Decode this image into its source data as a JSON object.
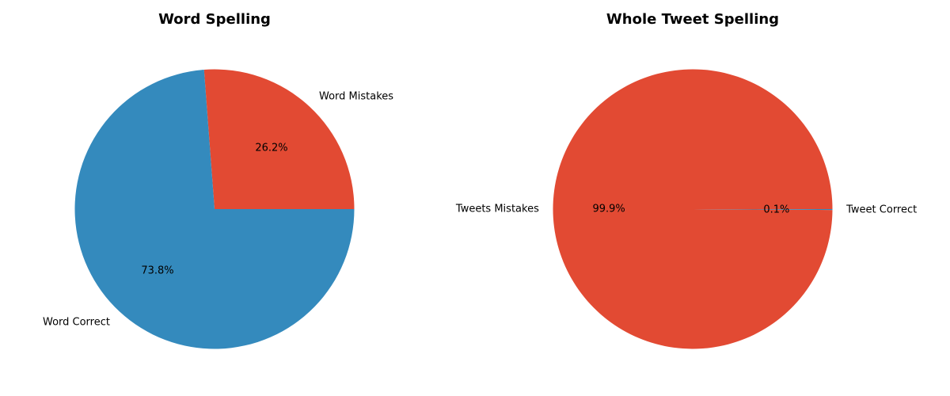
{
  "colors": {
    "red": "#E24A33",
    "blue": "#348ABD"
  },
  "chart_data": [
    {
      "type": "pie",
      "title": "Word Spelling",
      "slices": [
        {
          "label": "Word Mistakes",
          "value": 26.2,
          "pct_label": "26.2%",
          "color": "#E24A33"
        },
        {
          "label": "Word Correct",
          "value": 73.8,
          "pct_label": "73.8%",
          "color": "#348ABD"
        }
      ]
    },
    {
      "type": "pie",
      "title": "Whole Tweet Spelling",
      "slices": [
        {
          "label": "Tweets Mistakes",
          "value": 99.9,
          "pct_label": "99.9%",
          "color": "#E24A33"
        },
        {
          "label": "Tweet Correct",
          "value": 0.1,
          "pct_label": "0.1%",
          "color": "#348ABD"
        }
      ]
    }
  ]
}
